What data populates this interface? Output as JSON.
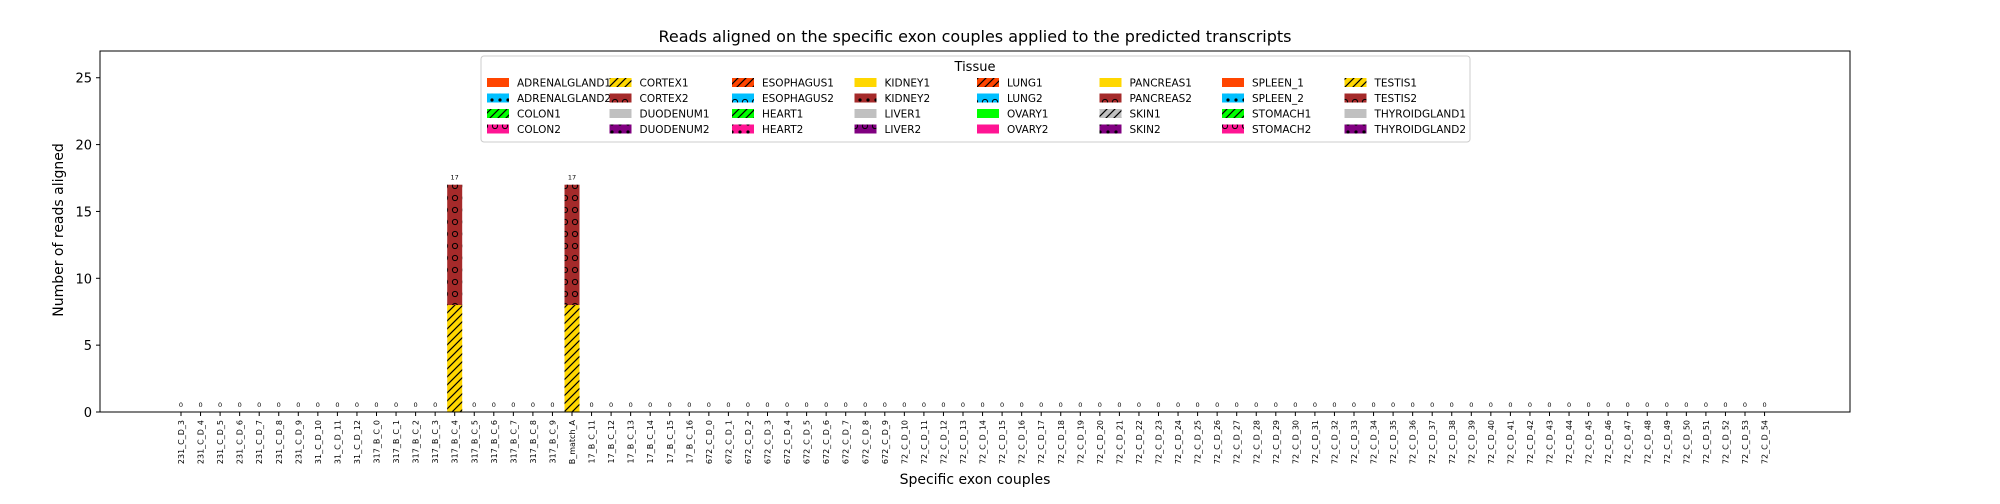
{
  "chart_data": {
    "type": "bar",
    "stacked": true,
    "title": "Reads aligned on the specific exon couples applied to the predicted transcripts",
    "xlabel": "Specific exon couples",
    "ylabel": "Number of reads aligned",
    "ylim": [
      0,
      27
    ],
    "yticks": [
      0,
      5,
      10,
      15,
      20,
      25
    ],
    "grid": false,
    "categories": [
      "231_C_D_3",
      "231_C_D_4",
      "231_C_D_5",
      "231_C_D_6",
      "231_C_D_7",
      "231_C_D_8",
      "231_C_D_9",
      "31_C_D_10",
      "31_C_D_11",
      "31_C_D_12",
      "317_B_C_0",
      "317_B_C_1",
      "317_B_C_2",
      "317_B_C_3",
      "317_B_C_4",
      "317_B_C_5",
      "317_B_C_6",
      "317_B_C_7",
      "317_B_C_8",
      "317_B_C_9",
      "B_match_A",
      "17_B_C_11",
      "17_B_C_12",
      "17_B_C_13",
      "17_B_C_14",
      "17_B_C_15",
      "17_B_C_16",
      "672_C_D_0",
      "672_C_D_1",
      "672_C_D_2",
      "672_C_D_3",
      "672_C_D_4",
      "672_C_D_5",
      "672_C_D_6",
      "672_C_D_7",
      "672_C_D_8",
      "672_C_D_9",
      "72_C_D_10",
      "72_C_D_11",
      "72_C_D_12",
      "72_C_D_13",
      "72_C_D_14",
      "72_C_D_15",
      "72_C_D_16",
      "72_C_D_17",
      "72_C_D_18",
      "72_C_D_19",
      "72_C_D_20",
      "72_C_D_21",
      "72_C_D_22",
      "72_C_D_23",
      "72_C_D_24",
      "72_C_D_25",
      "72_C_D_26",
      "72_C_D_27",
      "72_C_D_28",
      "72_C_D_29",
      "72_C_D_30",
      "72_C_D_31",
      "72_C_D_32",
      "72_C_D_33",
      "72_C_D_34",
      "72_C_D_35",
      "72_C_D_36",
      "72_C_D_37",
      "72_C_D_38",
      "72_C_D_39",
      "72_C_D_40",
      "72_C_D_41",
      "72_C_D_42",
      "72_C_D_43",
      "72_C_D_44",
      "72_C_D_45",
      "72_C_D_46",
      "72_C_D_47",
      "72_C_D_48",
      "72_C_D_49",
      "72_C_D_50",
      "72_C_D_51",
      "72_C_D_52",
      "72_C_D_53",
      "72_C_D_54"
    ],
    "totals": [
      0,
      0,
      0,
      0,
      0,
      0,
      0,
      0,
      0,
      0,
      0,
      0,
      0,
      0,
      17,
      0,
      0,
      0,
      0,
      0,
      17,
      0,
      0,
      0,
      0,
      0,
      0,
      0,
      0,
      0,
      0,
      0,
      0,
      0,
      0,
      0,
      0,
      0,
      0,
      0,
      0,
      0,
      0,
      0,
      0,
      0,
      0,
      0,
      0,
      0,
      0,
      0,
      0,
      0,
      0,
      0,
      0,
      0,
      0,
      0,
      0,
      0,
      0,
      0,
      0,
      0,
      0,
      0,
      0,
      0,
      0,
      0,
      0,
      0,
      0,
      0,
      0,
      0,
      0,
      0,
      0,
      0
    ],
    "series": [
      {
        "name": "TESTIS1",
        "color": "#FFD700",
        "hatch": "/",
        "points": [
          {
            "category": "317_B_C_4",
            "value": 8
          },
          {
            "category": "B_match_A",
            "value": 8
          }
        ]
      },
      {
        "name": "TESTIS2",
        "color": "#A52A2A",
        "hatch": "o",
        "points": [
          {
            "category": "317_B_C_4",
            "value": 9
          },
          {
            "category": "B_match_A",
            "value": 9
          }
        ]
      }
    ],
    "legend": {
      "title": "Tissue",
      "placement": "upper center",
      "entries": [
        {
          "name": "ADRENALGLAND1",
          "color": "#FF4500",
          "hatch": ""
        },
        {
          "name": "ADRENALGLAND2",
          "color": "#00BFFF",
          "hatch": "*"
        },
        {
          "name": "COLON1",
          "color": "#00FF00",
          "hatch": "/"
        },
        {
          "name": "COLON2",
          "color": "#FF1493",
          "hatch": "o"
        },
        {
          "name": "CORTEX1",
          "color": "#FFD700",
          "hatch": "/"
        },
        {
          "name": "CORTEX2",
          "color": "#A52A2A",
          "hatch": "o"
        },
        {
          "name": "DUODENUM1",
          "color": "#C0C0C0",
          "hatch": ""
        },
        {
          "name": "DUODENUM2",
          "color": "#800080",
          "hatch": "*"
        },
        {
          "name": "ESOPHAGUS1",
          "color": "#FF4500",
          "hatch": "/"
        },
        {
          "name": "ESOPHAGUS2",
          "color": "#00BFFF",
          "hatch": "o"
        },
        {
          "name": "HEART1",
          "color": "#00FF00",
          "hatch": "/"
        },
        {
          "name": "HEART2",
          "color": "#FF1493",
          "hatch": "*"
        },
        {
          "name": "KIDNEY1",
          "color": "#FFD700",
          "hatch": ""
        },
        {
          "name": "KIDNEY2",
          "color": "#A52A2A",
          "hatch": "*"
        },
        {
          "name": "LIVER1",
          "color": "#C0C0C0",
          "hatch": ""
        },
        {
          "name": "LIVER2",
          "color": "#800080",
          "hatch": "o"
        },
        {
          "name": "LUNG1",
          "color": "#FF4500",
          "hatch": "/"
        },
        {
          "name": "LUNG2",
          "color": "#00BFFF",
          "hatch": "o"
        },
        {
          "name": "OVARY1",
          "color": "#00FF00",
          "hatch": ""
        },
        {
          "name": "OVARY2",
          "color": "#FF1493",
          "hatch": ""
        },
        {
          "name": "PANCREAS1",
          "color": "#FFD700",
          "hatch": ""
        },
        {
          "name": "PANCREAS2",
          "color": "#A52A2A",
          "hatch": "o"
        },
        {
          "name": "SKIN1",
          "color": "#C0C0C0",
          "hatch": "/"
        },
        {
          "name": "SKIN2",
          "color": "#800080",
          "hatch": "*"
        },
        {
          "name": "SPLEEN_1",
          "color": "#FF4500",
          "hatch": ""
        },
        {
          "name": "SPLEEN_2",
          "color": "#00BFFF",
          "hatch": "*"
        },
        {
          "name": "STOMACH1",
          "color": "#00FF00",
          "hatch": "/"
        },
        {
          "name": "STOMACH2",
          "color": "#FF1493",
          "hatch": "o"
        },
        {
          "name": "TESTIS1",
          "color": "#FFD700",
          "hatch": "/"
        },
        {
          "name": "TESTIS2",
          "color": "#A52A2A",
          "hatch": "o"
        },
        {
          "name": "THYROIDGLAND1",
          "color": "#C0C0C0",
          "hatch": ""
        },
        {
          "name": "THYROIDGLAND2",
          "color": "#800080",
          "hatch": "*"
        }
      ]
    }
  }
}
